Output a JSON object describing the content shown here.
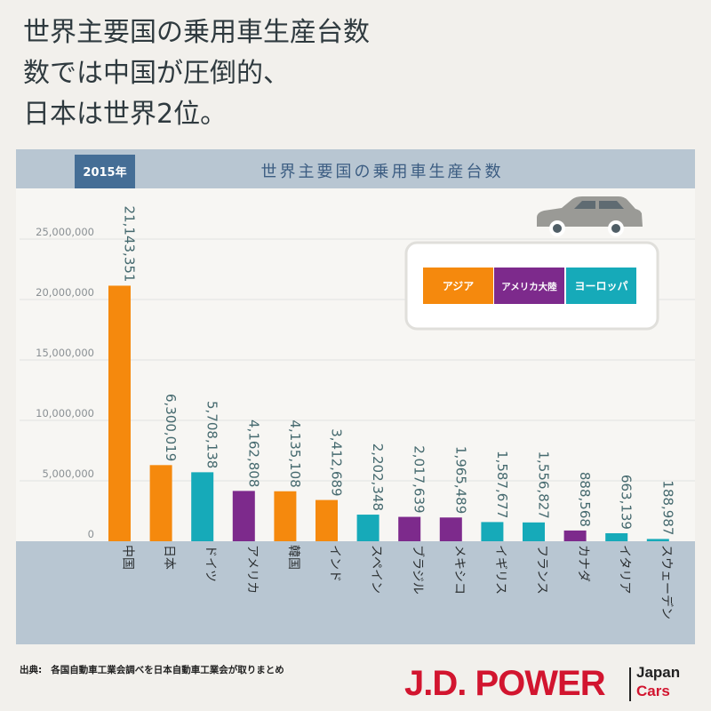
{
  "headline": {
    "line1": "世界主要国の乗用車生産台数",
    "line2": "数では中国が圧倒的、",
    "line3": "日本は世界2位。"
  },
  "chart_data": {
    "type": "bar",
    "title": "世界主要国の乗用車生産台数",
    "year_badge": "2015年",
    "ylim": [
      0,
      25000000
    ],
    "y_ticks": [
      "0",
      "5,000,000",
      "10,000,000",
      "15,000,000",
      "20,000,000",
      "25,000,000"
    ],
    "categories": [
      "中国",
      "日本",
      "ドイツ",
      "アメリカ",
      "韓国",
      "インド",
      "スペイン",
      "ブラジル",
      "メキシコ",
      "イギリス",
      "フランス",
      "カナダ",
      "イタリア",
      "スウェーデン"
    ],
    "values": [
      21143351,
      6300019,
      5708138,
      4162808,
      4135108,
      3412689,
      2202348,
      2017639,
      1965489,
      1587677,
      1556827,
      888568,
      663139,
      188987
    ],
    "value_labels": [
      "21,143,351",
      "6,300,019",
      "5,708,138",
      "4,162,808",
      "4,135,108",
      "3,412,689",
      "2,202,348",
      "2,017,639",
      "1,965,489",
      "1,587,677",
      "1,556,827",
      "888,568",
      "663,139",
      "188,987"
    ],
    "regions": [
      "アジア",
      "アジア",
      "ヨーロッパ",
      "アメリカ大陸",
      "アジア",
      "アジア",
      "ヨーロッパ",
      "アメリカ大陸",
      "アメリカ大陸",
      "ヨーロッパ",
      "ヨーロッパ",
      "アメリカ大陸",
      "ヨーロッパ",
      "ヨーロッパ"
    ],
    "legend": [
      {
        "name": "アジア",
        "color": "#f5890d"
      },
      {
        "name": "アメリカ大陸",
        "color": "#7d2a8c"
      },
      {
        "name": "ヨーロッパ",
        "color": "#16aab9"
      }
    ],
    "legend_position": "top-right",
    "grid": true
  },
  "colors": {
    "band": "#b8c6d2",
    "badge": "#456e96",
    "title_text": "#3c5d82",
    "grid": "#e2e2e2",
    "value_text": "#466a6f",
    "tick_text": "#8a9094"
  },
  "icons": {
    "car": "car-icon"
  },
  "source": {
    "label": "出典:",
    "text": "各国自動車工業会調べを日本自動車工業会が取りまとめ"
  },
  "brand": {
    "main": "J.D. POWER",
    "sub1": "Japan",
    "sub2": "Cars"
  }
}
